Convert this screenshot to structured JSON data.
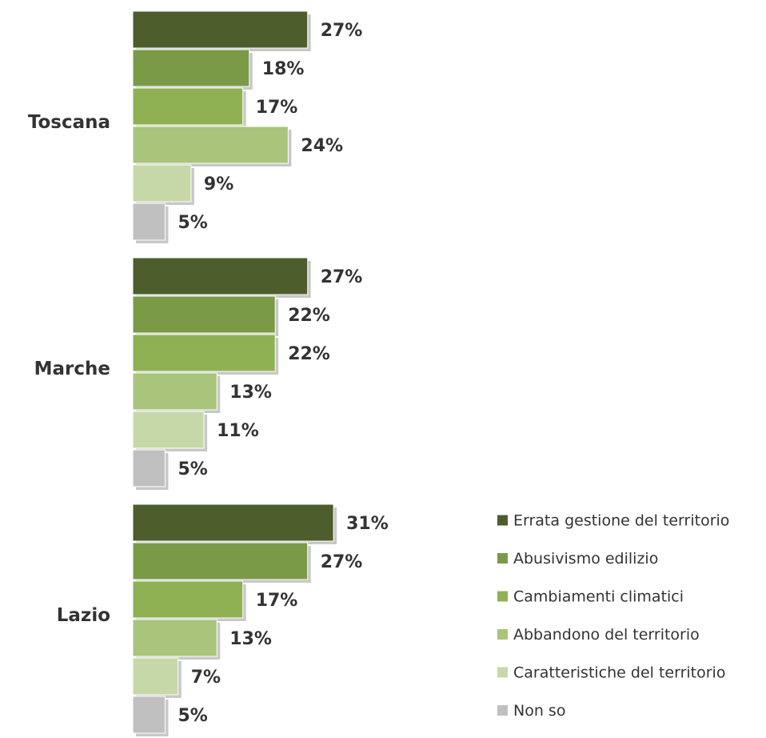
{
  "chart_data": {
    "type": "bar",
    "orientation": "horizontal",
    "value_suffix": "%",
    "categories": [
      "Toscana",
      "Marche",
      "Lazio"
    ],
    "series": [
      {
        "name": "Errata gestione del territorio",
        "color": "#4e5d2c",
        "values": [
          27,
          27,
          31
        ]
      },
      {
        "name": "Abusivismo edilizio",
        "color": "#7a9a48",
        "values": [
          18,
          22,
          27
        ]
      },
      {
        "name": "Cambiamenti climatici",
        "color": "#8fb153",
        "values": [
          17,
          22,
          17
        ]
      },
      {
        "name": "Abbandono del territorio",
        "color": "#a9c47b",
        "values": [
          24,
          13,
          13
        ]
      },
      {
        "name": "Caratteristiche del territorio",
        "color": "#c6d8a8",
        "values": [
          9,
          11,
          7
        ]
      },
      {
        "name": "Non so",
        "color": "#c0c0c0",
        "values": [
          5,
          5,
          5
        ]
      }
    ],
    "title": "",
    "xlabel": "",
    "ylabel": "",
    "grid": false,
    "legend_position": "bottom-right"
  }
}
